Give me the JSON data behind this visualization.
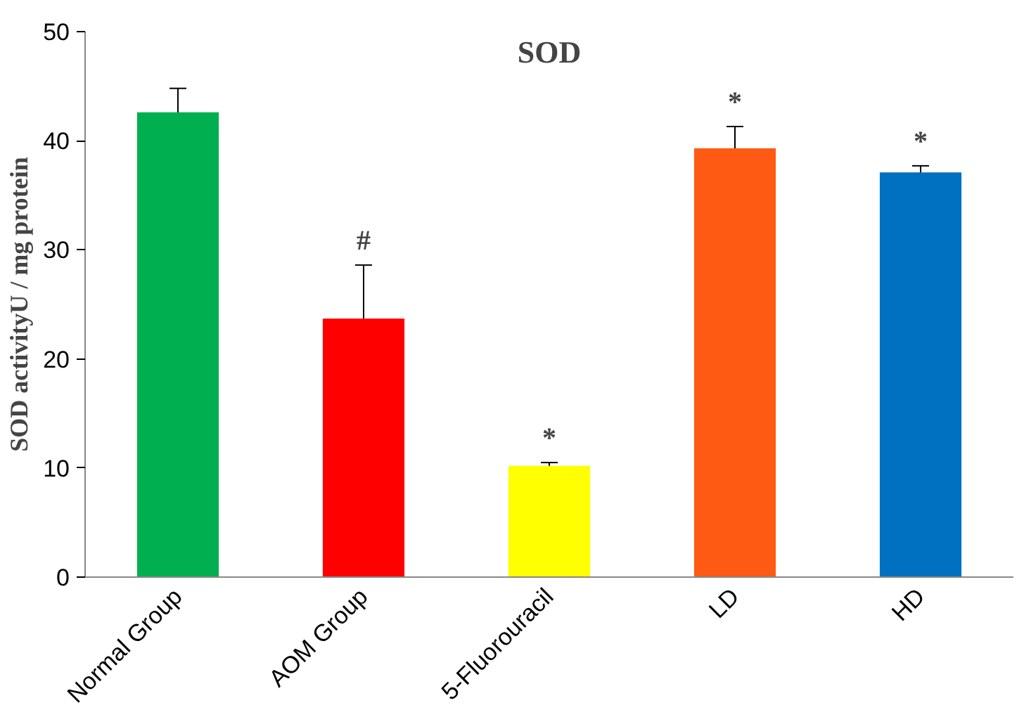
{
  "chart_data": {
    "type": "bar",
    "title": "SOD",
    "ylabel": "SOD activityU / mg protein",
    "categories": [
      "Normal Group",
      "AOM Group",
      "5-Fluorouracil",
      "LD",
      "HD"
    ],
    "values": [
      42.6,
      23.7,
      10.2,
      39.3,
      37.1
    ],
    "colors": [
      "#00b050",
      "#ff0000",
      "#ffff00",
      "#ff5a14",
      "#0070c0"
    ],
    "errors": [
      2.2,
      4.9,
      0.3,
      2.0,
      0.6
    ],
    "value_labels": [
      null,
      "#",
      "*",
      "*",
      "*"
    ],
    "ylim": [
      0,
      50
    ],
    "yticks": [
      0,
      10,
      20,
      30,
      40,
      50
    ],
    "grid": false
  }
}
